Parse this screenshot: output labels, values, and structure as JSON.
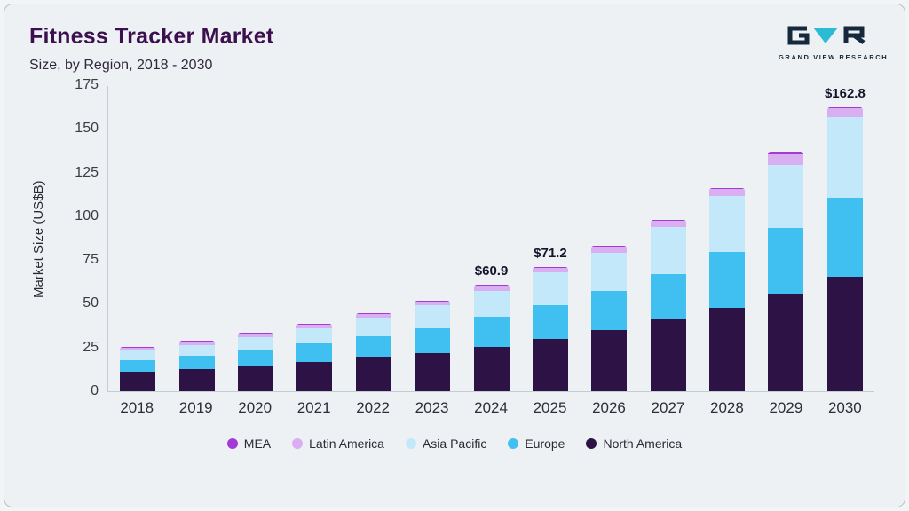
{
  "header": {
    "title": "Fitness Tracker Market",
    "subtitle": "Size, by Region, 2018 - 2030"
  },
  "logo": {
    "brand": "GRAND VIEW RESEARCH",
    "mark_dark": "#16283c",
    "mark_teal": "#2bbcd4"
  },
  "chart_data": {
    "type": "bar",
    "stacked": true,
    "title": "Fitness Tracker Market Size, by Region, 2018 - 2030",
    "xlabel": "",
    "ylabel": "Market Size (US$B)",
    "ylim": [
      0,
      175
    ],
    "yticks": [
      0,
      25,
      50,
      75,
      100,
      125,
      150,
      175
    ],
    "grid": false,
    "legend_position": "bottom",
    "categories": [
      "2018",
      "2019",
      "2020",
      "2021",
      "2022",
      "2023",
      "2024",
      "2025",
      "2026",
      "2027",
      "2028",
      "2029",
      "2030"
    ],
    "series": [
      {
        "name": "North America",
        "color": "#2d1245",
        "values": [
          11,
          12.5,
          14.5,
          17,
          20,
          22,
          25.5,
          30,
          35,
          41,
          47.5,
          56,
          65.5
        ]
      },
      {
        "name": "Europe",
        "color": "#3fc0f0",
        "values": [
          7,
          8,
          9,
          10.5,
          11.5,
          14,
          17,
          19,
          22.5,
          26,
          32,
          37.5,
          45.5
        ]
      },
      {
        "name": "Asia Pacific",
        "color": "#c2e8fa",
        "values": [
          5.5,
          6,
          7.5,
          8.5,
          10,
          13,
          15,
          19,
          21.5,
          27,
          32,
          36,
          46
        ]
      },
      {
        "name": "Latin America",
        "color": "#d9aff2",
        "values": [
          1.5,
          1.7,
          2,
          2,
          2.5,
          2.5,
          2.8,
          2.7,
          3.5,
          3.5,
          4,
          6,
          5.3
        ]
      },
      {
        "name": "MEA",
        "color": "#a43ad6",
        "values": [
          0.5,
          0.5,
          0.5,
          0.5,
          0.5,
          0.5,
          0.6,
          0.5,
          0.5,
          0.5,
          0.7,
          1.5,
          0.5
        ]
      }
    ],
    "annotations": [
      {
        "category": "2024",
        "label": "$60.9"
      },
      {
        "category": "2025",
        "label": "$71.2"
      },
      {
        "category": "2030",
        "label": "$162.8"
      }
    ],
    "legend_order": [
      "MEA",
      "Latin America",
      "Asia Pacific",
      "Europe",
      "North America"
    ]
  }
}
